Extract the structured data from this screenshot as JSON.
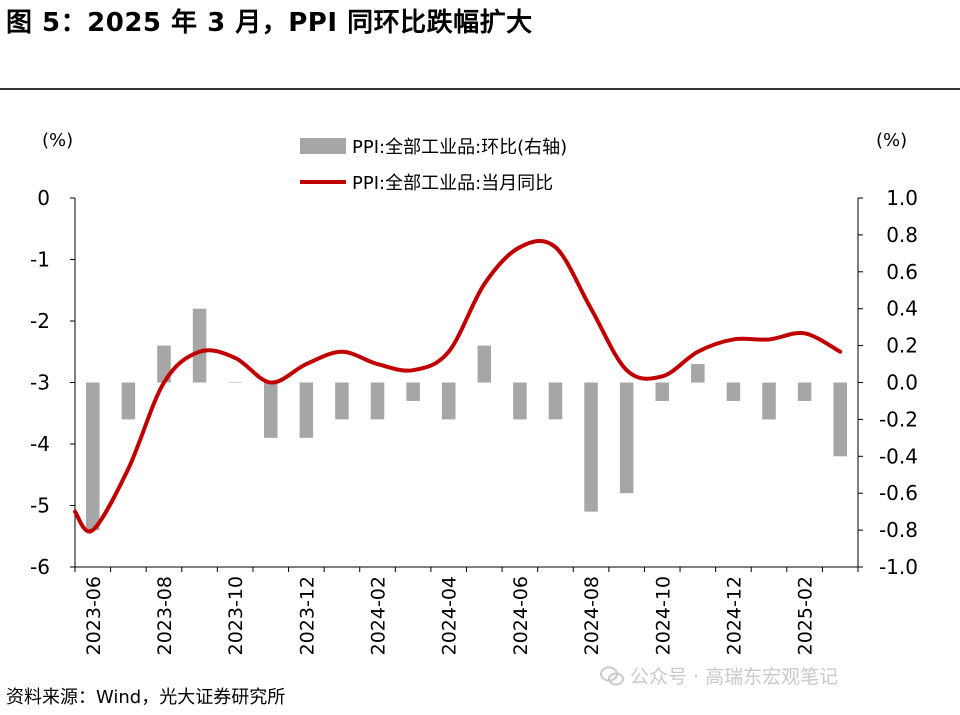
{
  "header": {
    "title": "图 5：2025 年 3 月，PPI 同环比跌幅扩大"
  },
  "units": {
    "left": "(%)",
    "right": "(%)"
  },
  "legend": {
    "bar_label": "PPI:全部工业品:环比(右轴)",
    "line_label": "PPI:全部工业品:当月同比"
  },
  "footer": {
    "source": "资料来源：Wind，光大证券研究所",
    "watermark": "公众号 · 高瑞东宏观笔记"
  },
  "colors": {
    "bar": "#a6a6a6",
    "line": "#c00000",
    "axis": "#000000"
  },
  "chart_data": {
    "type": "bar+line",
    "x": [
      "2023-06",
      "2023-07",
      "2023-08",
      "2023-09",
      "2023-10",
      "2023-11",
      "2023-12",
      "2024-01",
      "2024-02",
      "2024-03",
      "2024-04",
      "2024-05",
      "2024-06",
      "2024-07",
      "2024-08",
      "2024-09",
      "2024-10",
      "2024-11",
      "2024-12",
      "2025-01",
      "2025-02",
      "2025-03"
    ],
    "x_tick_labels": [
      "2023-06",
      "2023-08",
      "2023-10",
      "2023-12",
      "2024-02",
      "2024-04",
      "2024-06",
      "2024-08",
      "2024-10",
      "2024-12",
      "2025-02"
    ],
    "series": [
      {
        "name": "PPI:全部工业品:环比(右轴)",
        "type": "bar",
        "axis": "right",
        "values": [
          -0.8,
          -0.2,
          0.2,
          0.4,
          0.0,
          -0.3,
          -0.3,
          -0.2,
          -0.2,
          -0.1,
          -0.2,
          0.2,
          -0.2,
          -0.2,
          -0.7,
          -0.6,
          -0.1,
          0.1,
          -0.1,
          -0.2,
          -0.1,
          -0.4
        ]
      },
      {
        "name": "PPI:全部工业品:当月同比",
        "type": "line",
        "axis": "left",
        "values": [
          -5.4,
          -4.4,
          -3.0,
          -2.5,
          -2.6,
          -3.0,
          -2.7,
          -2.5,
          -2.7,
          -2.8,
          -2.5,
          -1.4,
          -0.8,
          -0.8,
          -1.8,
          -2.8,
          -2.9,
          -2.5,
          -2.3,
          -2.3,
          -2.2,
          -2.5
        ]
      }
    ],
    "y_left": {
      "lim": [
        -6,
        0
      ],
      "ticks": [
        "0",
        "-1",
        "-2",
        "-3",
        "-4",
        "-5",
        "-6"
      ]
    },
    "y_right": {
      "lim": [
        -1.0,
        1.0
      ],
      "ticks": [
        "1.0",
        "0.8",
        "0.6",
        "0.4",
        "0.2",
        "0.0",
        "-0.2",
        "-0.4",
        "-0.6",
        "-0.8",
        "-1.0"
      ]
    },
    "grid": false,
    "legend_position": "top-center"
  }
}
